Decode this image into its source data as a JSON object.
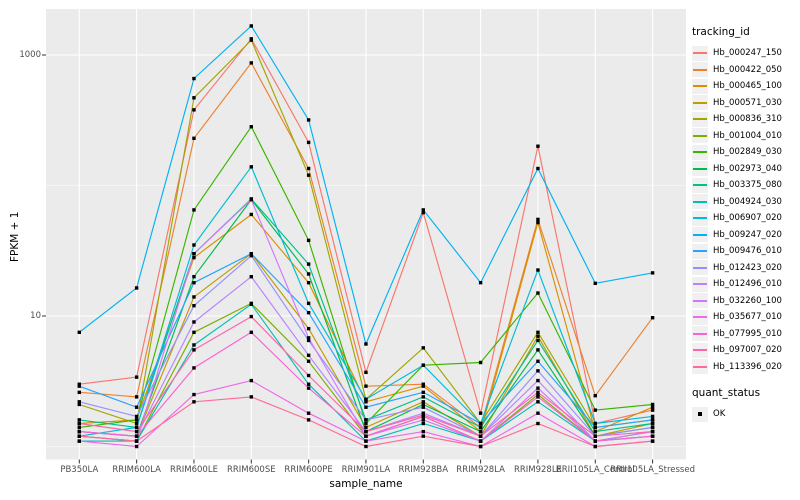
{
  "panel": {
    "bg": "#ebebeb",
    "grid": "#ffffff",
    "tick_color": "#333333",
    "tick_label_color": "#4d4d4d",
    "point_color": "#000000"
  },
  "chart_data": {
    "type": "line",
    "title": "",
    "xlabel": "sample_name",
    "ylabel": "FPKM + 1",
    "y_scale": "log10",
    "ylim": [
      0.93,
      2300
    ],
    "y_tick_breaks": [
      1000,
      10
    ],
    "y_grid_major": [
      1000,
      10
    ],
    "y_grid_minor": [
      100,
      1
    ],
    "grid": true,
    "legend_position": "right",
    "categories": [
      "PB350LA",
      "RRIM600LA",
      "RRIM600LE",
      "RRIM600SE",
      "RRIM600PE",
      "RRIM901LA",
      "RRIM928BA",
      "RRIM928LA",
      "RRIM928LE",
      "RRII105LA_Control",
      "RRII105LA_Stressed"
    ],
    "series": [
      {
        "name": "Hb_000247_150",
        "color": "#F8766D",
        "values": [
          3.0,
          3.4,
          380,
          1330,
          214,
          3.7,
          62,
          1.8,
          200,
          1.5,
          1.9
        ]
      },
      {
        "name": "Hb_000422_050",
        "color": "#EA8331",
        "values": [
          2.6,
          2.4,
          230,
          870,
          135,
          2.9,
          3.0,
          1.4,
          55,
          2.45,
          9.7
        ]
      },
      {
        "name": "Hb_000465_100",
        "color": "#D89000",
        "values": [
          1.5,
          1.6,
          28,
          60,
          18,
          2.2,
          2.9,
          1.3,
          52,
          1.3,
          2.0
        ]
      },
      {
        "name": "Hb_000571_030",
        "color": "#C09B00",
        "values": [
          1.3,
          1.2,
          14,
          30,
          8.0,
          1.4,
          2.2,
          1.2,
          7.0,
          1.2,
          1.5
        ]
      },
      {
        "name": "Hb_000836_310",
        "color": "#A3A500",
        "values": [
          2.1,
          1.5,
          470,
          1300,
          120,
          2.3,
          5.7,
          1.5,
          7.5,
          1.4,
          1.6
        ]
      },
      {
        "name": "Hb_001004_010",
        "color": "#7CAE00",
        "values": [
          1.2,
          1.1,
          7.5,
          12.5,
          4.5,
          1.2,
          1.7,
          1.1,
          2.5,
          1.1,
          1.3
        ]
      },
      {
        "name": "Hb_002849_030",
        "color": "#39B600",
        "values": [
          1.4,
          1.6,
          65,
          282,
          38,
          1.5,
          4.2,
          4.4,
          15,
          1.9,
          2.1
        ]
      },
      {
        "name": "Hb_002973_040",
        "color": "#00BB4E",
        "values": [
          1.3,
          1.2,
          20,
          78,
          21,
          1.3,
          2.1,
          1.3,
          5.5,
          1.2,
          1.4
        ]
      },
      {
        "name": "Hb_003375_080",
        "color": "#00C087",
        "values": [
          1.6,
          1.4,
          30,
          79,
          25,
          1.6,
          2.4,
          1.4,
          6.5,
          1.3,
          1.5
        ]
      },
      {
        "name": "Hb_004924_030",
        "color": "#00C0B2",
        "values": [
          1.1,
          1.1,
          6.0,
          12.3,
          3.0,
          1.1,
          1.5,
          1.1,
          2.2,
          1.1,
          1.2
        ]
      },
      {
        "name": "Hb_006907_020",
        "color": "#00BCD6",
        "values": [
          1.2,
          1.4,
          35,
          139,
          12.5,
          2.3,
          4.2,
          1.5,
          22.5,
          1.5,
          1.7
        ]
      },
      {
        "name": "Hb_009247_020",
        "color": "#00B2F3",
        "values": [
          7.5,
          16.4,
          660,
          1670,
          318,
          6.1,
          65,
          18,
          135,
          17.8,
          21.4
        ]
      },
      {
        "name": "Hb_009476_010",
        "color": "#29A3FF",
        "values": [
          2.9,
          2.0,
          18,
          30,
          10.6,
          2.0,
          2.6,
          1.5,
          4.5,
          1.4,
          1.6
        ]
      },
      {
        "name": "Hb_012423_020",
        "color": "#9590FF",
        "values": [
          2.2,
          1.7,
          12,
          29,
          6.5,
          1.6,
          2.0,
          1.2,
          3.8,
          1.2,
          1.4
        ]
      },
      {
        "name": "Hb_012496_010",
        "color": "#B983FF",
        "values": [
          1.3,
          1.2,
          9.0,
          20,
          5.0,
          1.3,
          1.8,
          1.2,
          3.2,
          1.1,
          1.3
        ]
      },
      {
        "name": "Hb_032260_100",
        "color": "#D376FF",
        "values": [
          1.2,
          1.1,
          30,
          78,
          6.8,
          1.2,
          1.6,
          1.1,
          2.8,
          1.1,
          1.2
        ]
      },
      {
        "name": "Hb_035677_010",
        "color": "#EF67EB",
        "values": [
          1.1,
          1.0,
          2.5,
          3.2,
          1.8,
          1.1,
          1.3,
          1.0,
          1.8,
          1.0,
          1.1
        ]
      },
      {
        "name": "Hb_077995_010",
        "color": "#FD61D3",
        "values": [
          1.3,
          1.2,
          4.0,
          7.5,
          2.8,
          1.2,
          1.7,
          1.1,
          2.4,
          1.1,
          1.2
        ]
      },
      {
        "name": "Hb_097007_020",
        "color": "#FF65AC",
        "values": [
          1.5,
          1.3,
          5.5,
          9.9,
          3.5,
          1.3,
          1.74,
          1.2,
          2.6,
          1.2,
          1.3
        ]
      },
      {
        "name": "Hb_113396_020",
        "color": "#FF6A98",
        "values": [
          1.2,
          1.1,
          2.2,
          2.4,
          1.6,
          1.0,
          1.2,
          1.0,
          1.5,
          1.0,
          1.1
        ]
      }
    ]
  },
  "legend": {
    "color_title": "tracking_id",
    "shape_title": "quant_status",
    "shape_items": [
      "OK"
    ]
  }
}
